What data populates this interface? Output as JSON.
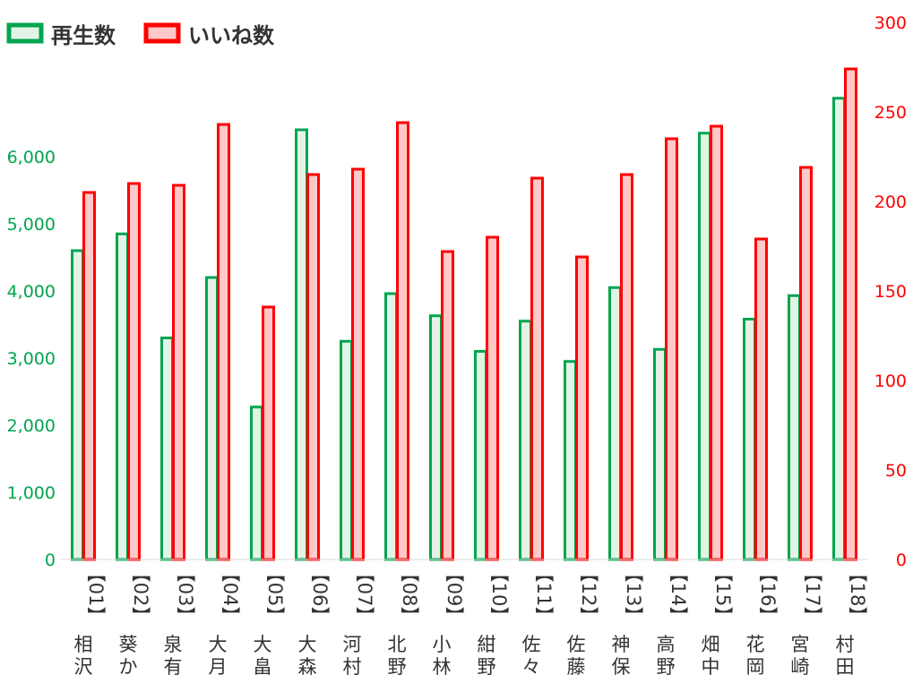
{
  "chart_data": {
    "type": "bar",
    "categories": [
      {
        "code": "【01】",
        "name": "相沢"
      },
      {
        "code": "【02】",
        "name": "葵か"
      },
      {
        "code": "【03】",
        "name": "泉有"
      },
      {
        "code": "【04】",
        "name": "大月"
      },
      {
        "code": "【05】",
        "name": "大畠"
      },
      {
        "code": "【06】",
        "name": "大森"
      },
      {
        "code": "【07】",
        "name": "河村"
      },
      {
        "code": "【08】",
        "name": "北野"
      },
      {
        "code": "【09】",
        "name": "小林"
      },
      {
        "code": "【10】",
        "name": "紺野"
      },
      {
        "code": "【11】",
        "name": "佐々"
      },
      {
        "code": "【12】",
        "name": "佐藤"
      },
      {
        "code": "【13】",
        "name": "神保"
      },
      {
        "code": "【14】",
        "name": "高野"
      },
      {
        "code": "【15】",
        "name": "畑中"
      },
      {
        "code": "【16】",
        "name": "花岡"
      },
      {
        "code": "【17】",
        "name": "宮崎"
      },
      {
        "code": "【18】",
        "name": "村田"
      }
    ],
    "series": [
      {
        "name": "再生数",
        "axis": "left",
        "color": "#00a550",
        "fill": "#e3f4e6",
        "values": [
          4600,
          4850,
          3300,
          4200,
          2270,
          6400,
          3250,
          3960,
          3630,
          3100,
          3550,
          2950,
          4050,
          3130,
          6350,
          3580,
          3930,
          6870
        ]
      },
      {
        "name": "いいね数",
        "axis": "right",
        "color": "#ff0000",
        "fill": "#ffc9c9",
        "values": [
          205,
          210,
          209,
          243,
          141,
          215,
          218,
          244,
          172,
          180,
          213,
          169,
          215,
          235,
          242,
          179,
          219,
          274
        ]
      }
    ],
    "y_left": {
      "min": 0,
      "max": 8000,
      "ticks": [
        "0",
        "1,000",
        "2,000",
        "3,000",
        "4,000",
        "5,000",
        "6,000"
      ],
      "tick_values": [
        0,
        1000,
        2000,
        3000,
        4000,
        5000,
        6000
      ]
    },
    "y_right": {
      "min": 0,
      "max": 300,
      "ticks": [
        "0",
        "50",
        "100",
        "150",
        "200",
        "250",
        "300"
      ],
      "tick_values": [
        0,
        50,
        100,
        150,
        200,
        250,
        300
      ]
    },
    "grid": false,
    "legend": "top-left"
  }
}
